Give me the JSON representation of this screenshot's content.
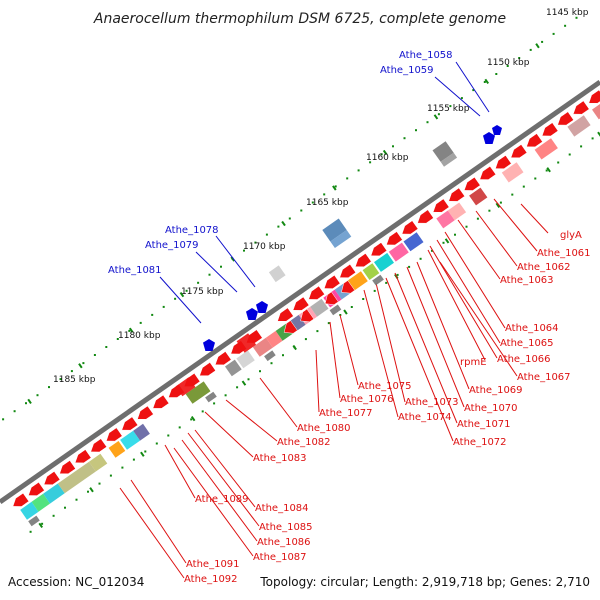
{
  "title": "Anaerocellum thermophilum DSM 6725, complete genome",
  "footer": {
    "accession": "Accession: NC_012034",
    "summary": "Topology: circular; Length: 2,919,718 bp; Genes: 2,710"
  },
  "colors": {
    "backbone": "#777777",
    "forward_gene": "#ee1111",
    "label_red": "#dd1111",
    "label_blue": "#1111cc",
    "tick": "#118811"
  },
  "ruler": [
    "1145 kbp",
    "1150 kbp",
    "1155 kbp",
    "1160 kbp",
    "1165 kbp",
    "1170 kbp",
    "1175 kbp",
    "1180 kbp",
    "1185 kbp"
  ],
  "labels_blue": [
    "Athe_1058",
    "Athe_1059",
    "Athe_1078",
    "Athe_1079",
    "Athe_1081"
  ],
  "labels_red": [
    "glyA",
    "Athe_1061",
    "Athe_1062",
    "Athe_1063",
    "Athe_1064",
    "Athe_1065",
    "rpmE",
    "Athe_1066",
    "Athe_1067",
    "Athe_1069",
    "Athe_1070",
    "Athe_1071",
    "Athe_1072",
    "Athe_1073",
    "Athe_1074",
    "Athe_1075",
    "Athe_1076",
    "Athe_1077",
    "Athe_1080",
    "Athe_1082",
    "Athe_1083",
    "Athe_1084",
    "Athe_1085",
    "Athe_1086",
    "Athe_1087",
    "Athe_1089",
    "Athe_1091",
    "Athe_1092"
  ]
}
